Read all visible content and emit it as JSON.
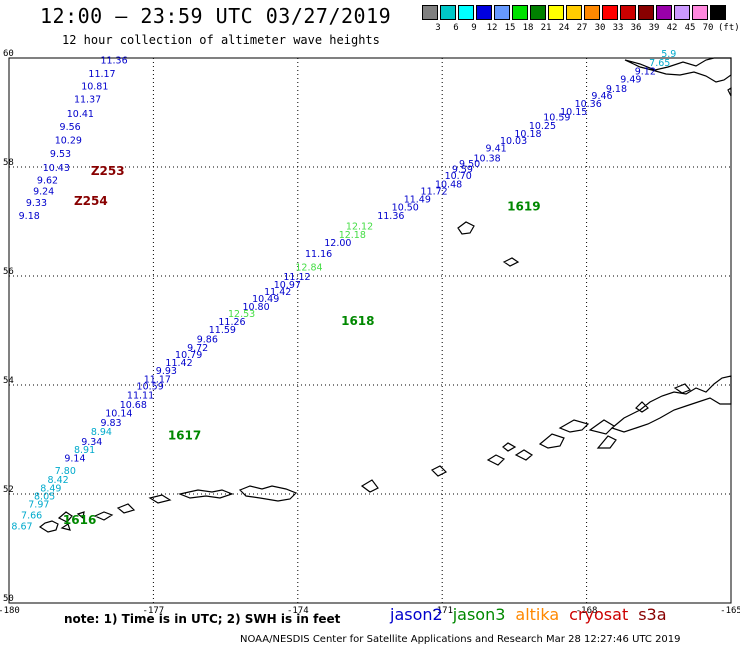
{
  "header": {
    "title": "12:00 – 23:59 UTC 03/27/2019",
    "subtitle": "12 hour collection of altimeter wave heights"
  },
  "color_scale": {
    "unit": "(ft)",
    "bins": [
      {
        "label": "3",
        "color": "#808080"
      },
      {
        "label": "6",
        "color": "#00c8c8"
      },
      {
        "label": "9",
        "color": "#00ffff"
      },
      {
        "label": "12",
        "color": "#0000e0"
      },
      {
        "label": "15",
        "color": "#6699ff"
      },
      {
        "label": "18",
        "color": "#00e000"
      },
      {
        "label": "21",
        "color": "#008000"
      },
      {
        "label": "24",
        "color": "#ffff00"
      },
      {
        "label": "27",
        "color": "#ffcc00"
      },
      {
        "label": "30",
        "color": "#ff8800"
      },
      {
        "label": "33",
        "color": "#ff0000"
      },
      {
        "label": "36",
        "color": "#cc0000"
      },
      {
        "label": "39",
        "color": "#880000"
      },
      {
        "label": "42",
        "color": "#9900aa"
      },
      {
        "label": "45",
        "color": "#cc99ff"
      },
      {
        "label": "70",
        "color": "#ff88dd"
      },
      {
        "label": "",
        "color": "#000000"
      }
    ]
  },
  "map": {
    "lat_range": [
      50,
      60
    ],
    "lon_range": [
      -180,
      -165
    ],
    "lat_ticks": [
      "50",
      "52",
      "54",
      "56",
      "58",
      "60"
    ],
    "lon_ticks": [
      "-180",
      "-177",
      "-174",
      "-171",
      "-168",
      "-165"
    ],
    "colors": {
      "jason2": "#0000cc",
      "jason3": "#008800",
      "altika": "#ff8800",
      "cryosat": "#cc0000",
      "s3a": "#880000",
      "light_blue": "#00aacc",
      "light_green": "#44dd44"
    },
    "pass_labels": [
      {
        "text": "1616",
        "lon": -178.88,
        "lat": 51.45,
        "color": "#008800"
      },
      {
        "text": "1617",
        "lon": -176.7,
        "lat": 53.0,
        "color": "#008800"
      },
      {
        "text": "1618",
        "lon": -173.1,
        "lat": 55.1,
        "color": "#008800"
      },
      {
        "text": "1619",
        "lon": -169.65,
        "lat": 57.2,
        "color": "#008800"
      },
      {
        "text": "Z253",
        "lon": -178.3,
        "lat": 57.85,
        "color": "#880000"
      },
      {
        "text": "Z254",
        "lon": -178.65,
        "lat": 57.3,
        "color": "#880000"
      }
    ],
    "z_track": [
      {
        "v": "11.36",
        "lon": -178.1,
        "lat": 59.9
      },
      {
        "v": "11.17",
        "lon": -178.35,
        "lat": 59.65
      },
      {
        "v": "10.81",
        "lon": -178.5,
        "lat": 59.42
      },
      {
        "v": "11.37",
        "lon": -178.65,
        "lat": 59.18
      },
      {
        "v": "10.41",
        "lon": -178.8,
        "lat": 58.92
      },
      {
        "v": "9.56",
        "lon": -178.95,
        "lat": 58.68
      },
      {
        "v": "10.29",
        "lon": -179.05,
        "lat": 58.43
      },
      {
        "v": "9.53",
        "lon": -179.15,
        "lat": 58.18
      },
      {
        "v": "10.43",
        "lon": -179.3,
        "lat": 57.93
      },
      {
        "v": "9.62",
        "lon": -179.42,
        "lat": 57.7
      },
      {
        "v": "9.24",
        "lon": -179.5,
        "lat": 57.5
      },
      {
        "v": "9.33",
        "lon": -179.65,
        "lat": 57.28
      },
      {
        "v": "9.18",
        "lon": -179.8,
        "lat": 57.05
      }
    ],
    "j_track": [
      {
        "v": "8.67",
        "lon": -179.95,
        "lat": 51.35,
        "c": "light_blue"
      },
      {
        "v": "7.66",
        "lon": -179.75,
        "lat": 51.55,
        "c": "light_blue"
      },
      {
        "v": "7.97",
        "lon": -179.6,
        "lat": 51.75,
        "c": "light_blue"
      },
      {
        "v": "8.05",
        "lon": -179.48,
        "lat": 51.9,
        "c": "light_blue"
      },
      {
        "v": "8.49",
        "lon": -179.35,
        "lat": 52.05,
        "c": "light_blue"
      },
      {
        "v": "8.42",
        "lon": -179.2,
        "lat": 52.2,
        "c": "light_blue"
      },
      {
        "v": "7.80",
        "lon": -179.05,
        "lat": 52.37,
        "c": "light_blue"
      },
      {
        "v": "9.14",
        "lon": -178.85,
        "lat": 52.6,
        "c": "jason2"
      },
      {
        "v": "8.91",
        "lon": -178.65,
        "lat": 52.75,
        "c": "light_blue"
      },
      {
        "v": "9.34",
        "lon": -178.5,
        "lat": 52.9,
        "c": "jason2"
      },
      {
        "v": "8.94",
        "lon": -178.3,
        "lat": 53.08,
        "c": "light_blue"
      },
      {
        "v": "9.83",
        "lon": -178.1,
        "lat": 53.25,
        "c": "jason2"
      },
      {
        "v": "10.14",
        "lon": -178.0,
        "lat": 53.42,
        "c": "jason2"
      },
      {
        "v": "10.68",
        "lon": -177.7,
        "lat": 53.58,
        "c": "jason2"
      },
      {
        "v": "11.11",
        "lon": -177.55,
        "lat": 53.75,
        "c": "jason2"
      },
      {
        "v": "10.59",
        "lon": -177.35,
        "lat": 53.92,
        "c": "jason2"
      },
      {
        "v": "11.17",
        "lon": -177.2,
        "lat": 54.05,
        "c": "jason2"
      },
      {
        "v": "9.93",
        "lon": -176.95,
        "lat": 54.2,
        "c": "jason2"
      },
      {
        "v": "11.42",
        "lon": -176.75,
        "lat": 54.35,
        "c": "jason2"
      },
      {
        "v": "10.79",
        "lon": -176.55,
        "lat": 54.5,
        "c": "jason2"
      },
      {
        "v": "9.72",
        "lon": -176.3,
        "lat": 54.62,
        "c": "jason2"
      },
      {
        "v": "9.86",
        "lon": -176.1,
        "lat": 54.78,
        "c": "jason2"
      },
      {
        "v": "11.59",
        "lon": -175.85,
        "lat": 54.95,
        "c": "jason2"
      },
      {
        "v": "11.26",
        "lon": -175.65,
        "lat": 55.1,
        "c": "jason2"
      },
      {
        "v": "12.53",
        "lon": -175.45,
        "lat": 55.25,
        "c": "light_green"
      },
      {
        "v": "10.80",
        "lon": -175.15,
        "lat": 55.38,
        "c": "jason2"
      },
      {
        "v": "10.49",
        "lon": -174.95,
        "lat": 55.52,
        "c": "jason2"
      },
      {
        "v": "11.42",
        "lon": -174.7,
        "lat": 55.65,
        "c": "jason2"
      },
      {
        "v": "10.97",
        "lon": -174.5,
        "lat": 55.78,
        "c": "jason2"
      },
      {
        "v": "11.12",
        "lon": -174.3,
        "lat": 55.93,
        "c": "jason2"
      },
      {
        "v": "12.84",
        "lon": -174.05,
        "lat": 56.1,
        "c": "light_green"
      },
      {
        "v": "11.16",
        "lon": -173.85,
        "lat": 56.35,
        "c": "jason2"
      },
      {
        "v": "12.00",
        "lon": -173.45,
        "lat": 56.55,
        "c": "jason2"
      },
      {
        "v": "12.18",
        "lon": -173.15,
        "lat": 56.7,
        "c": "light_green"
      },
      {
        "v": "12.12",
        "lon": -173.0,
        "lat": 56.85,
        "c": "light_green"
      },
      {
        "v": "11.36",
        "lon": -172.35,
        "lat": 57.05,
        "c": "jason2"
      },
      {
        "v": "10.50",
        "lon": -172.05,
        "lat": 57.2,
        "c": "jason2"
      },
      {
        "v": "11.49",
        "lon": -171.8,
        "lat": 57.35,
        "c": "jason2"
      },
      {
        "v": "11.72",
        "lon": -171.45,
        "lat": 57.5,
        "c": "jason2"
      },
      {
        "v": "10.48",
        "lon": -171.15,
        "lat": 57.62,
        "c": "jason2"
      },
      {
        "v": "10.70",
        "lon": -170.95,
        "lat": 57.78,
        "c": "jason2"
      },
      {
        "v": "9.59",
        "lon": -170.8,
        "lat": 57.9,
        "c": "jason2"
      },
      {
        "v": "9.50",
        "lon": -170.65,
        "lat": 58.0,
        "c": "jason2"
      },
      {
        "v": "10.38",
        "lon": -170.35,
        "lat": 58.1,
        "c": "jason2"
      },
      {
        "v": "9.41",
        "lon": -170.1,
        "lat": 58.28,
        "c": "jason2"
      },
      {
        "v": "10.03",
        "lon": -169.8,
        "lat": 58.42,
        "c": "jason2"
      },
      {
        "v": "10.18",
        "lon": -169.5,
        "lat": 58.55,
        "c": "jason2"
      },
      {
        "v": "10.25",
        "lon": -169.2,
        "lat": 58.7,
        "c": "jason2"
      },
      {
        "v": "10.59",
        "lon": -168.9,
        "lat": 58.85,
        "c": "jason2"
      },
      {
        "v": "10.15",
        "lon": -168.55,
        "lat": 58.95,
        "c": "jason2"
      },
      {
        "v": "10.36",
        "lon": -168.25,
        "lat": 59.1,
        "c": "jason2"
      },
      {
        "v": "9.46",
        "lon": -167.9,
        "lat": 59.25,
        "c": "jason2"
      },
      {
        "v": "9.18",
        "lon": -167.6,
        "lat": 59.38,
        "c": "jason2"
      },
      {
        "v": "9.49",
        "lon": -167.3,
        "lat": 59.55,
        "c": "jason2"
      },
      {
        "v": "9.12",
        "lon": -167.0,
        "lat": 59.7,
        "c": "jason2"
      },
      {
        "v": "7.65",
        "lon": -166.7,
        "lat": 59.85,
        "c": "light_blue"
      },
      {
        "v": "5.9",
        "lon": -166.45,
        "lat": 60.02,
        "c": "light_blue"
      }
    ]
  },
  "footer": {
    "note": "note:  1) Time is in UTC;  2) SWH is in feet",
    "legend": [
      {
        "text": "jason2",
        "color": "#0000cc"
      },
      {
        "text": "jason3",
        "color": "#008800"
      },
      {
        "text": "altika",
        "color": "#ff8800"
      },
      {
        "text": "cryosat",
        "color": "#cc0000"
      },
      {
        "text": "s3a",
        "color": "#880000"
      }
    ],
    "credit": "NOAA/NESDIS Center for Satellite Applications and Research     Mar 28 12:27:46 UTC 2019"
  }
}
